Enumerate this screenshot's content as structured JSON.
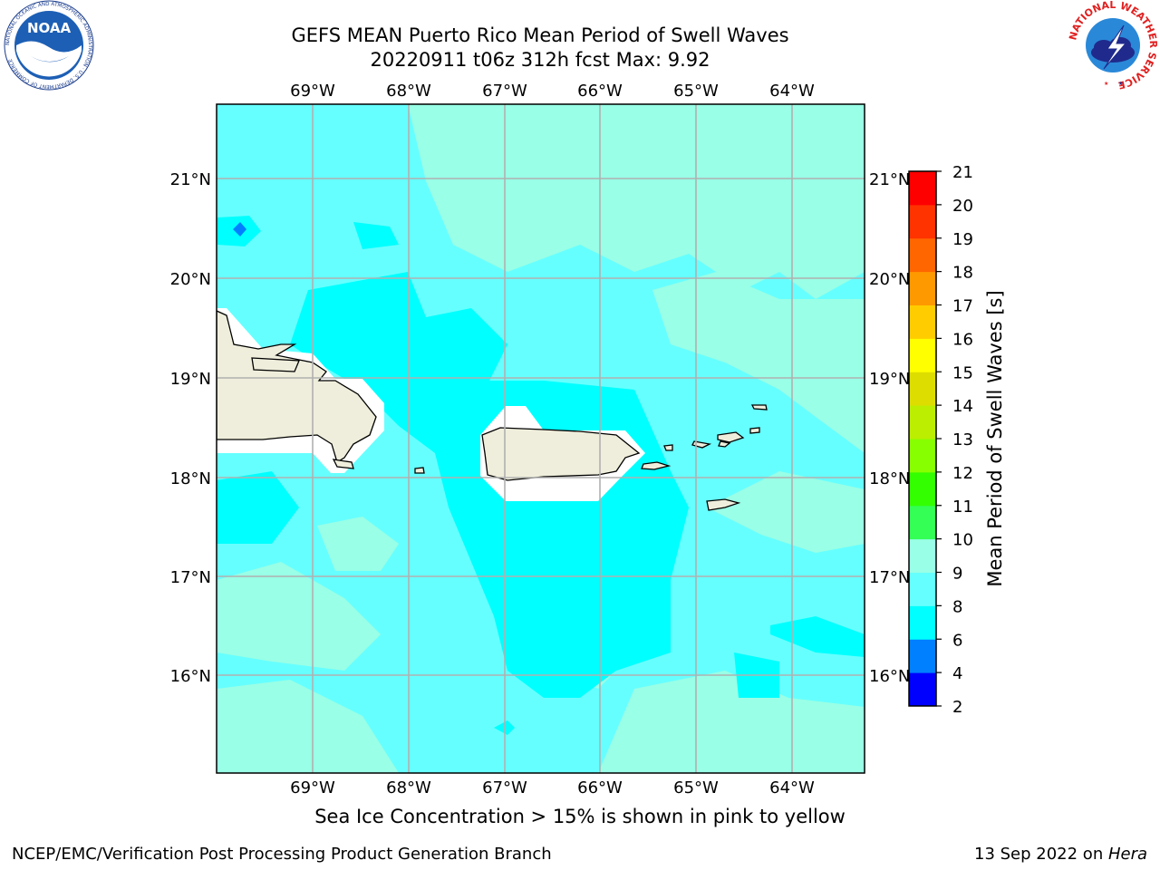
{
  "header": {
    "title_line1": "GEFS MEAN Puerto Rico Mean Period of Swell Waves",
    "title_line2": "20220911 t06z 312h fcst   Max: 9.92"
  },
  "map": {
    "lon_labels": [
      "69°W",
      "68°W",
      "67°W",
      "66°W",
      "65°W",
      "64°W"
    ],
    "lat_labels": [
      "21°N",
      "20°N",
      "19°N",
      "18°N",
      "17°N",
      "16°N"
    ],
    "colors": {
      "ocean_base": "#66ffff",
      "ocean_low": "#00ffff",
      "ocean_high": "#99ffe6",
      "land": "#efeedc",
      "mask": "#ffffff",
      "grid": "#b0b0b0"
    }
  },
  "colorbar": {
    "label": "Mean Period of Swell Waves [s]",
    "ticks": [
      "2",
      "4",
      "6",
      "8",
      "9",
      "10",
      "11",
      "12",
      "13",
      "14",
      "15",
      "16",
      "17",
      "18",
      "19",
      "20",
      "21"
    ],
    "colors": [
      "#0000ff",
      "#0080ff",
      "#00ffff",
      "#66ffff",
      "#99ffe6",
      "#33ff55",
      "#33ff00",
      "#88ff00",
      "#bbee00",
      "#dddd00",
      "#ffff00",
      "#ffcc00",
      "#ff9900",
      "#ff6600",
      "#ff3300",
      "#ff0000"
    ]
  },
  "note": "Sea Ice Concentration > 15% is shown in pink to yellow",
  "footer": {
    "left": "NCEP/EMC/Verification Post Processing Product Generation Branch",
    "right_prefix": "13 Sep 2022 on ",
    "right_host": "Hera"
  },
  "logos": {
    "noaa_text": "NOAA",
    "noaa_ring": "NATIONAL OCEANIC AND ATMOSPHERIC ADMINISTRATION · U.S. DEPARTMENT OF COMMERCE",
    "nws_ring": "NATIONAL WEATHER SERVICE"
  }
}
